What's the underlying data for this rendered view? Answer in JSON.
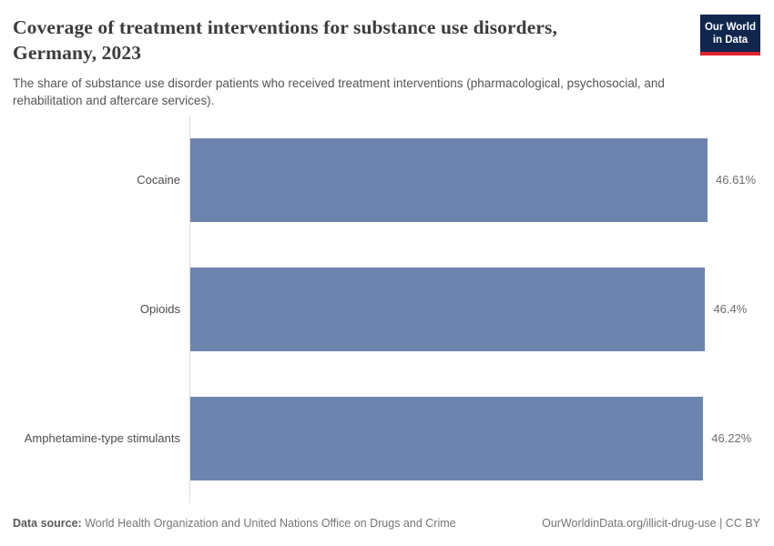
{
  "header": {
    "title": "Coverage of treatment interventions for substance use disorders, Germany, 2023",
    "title_line1": "Coverage of treatment interventions for substance use disorders,",
    "title_line2": "Germany, 2023",
    "subtitle": "The share of substance use disorder patients who received treatment interventions (pharmacological, psychosocial, and rehabilitation and aftercare services).",
    "logo": {
      "line1": "Our World",
      "line2": "in Data"
    }
  },
  "chart_data": {
    "type": "bar",
    "orientation": "horizontal",
    "title": "Coverage of treatment interventions for substance use disorders, Germany, 2023",
    "categories": [
      "Cocaine",
      "Opioids",
      "Amphetamine-type stimulants"
    ],
    "values": [
      46.61,
      46.4,
      46.22
    ],
    "value_labels": [
      "46.61%",
      "46.4%",
      "46.22%"
    ],
    "xlabel": "",
    "ylabel": "",
    "xlim": [
      0,
      46.61
    ],
    "grid": false,
    "legend": false
  },
  "footer": {
    "datasource_label": "Data source:",
    "datasource_value": " World Health Organization and United Nations Office on Drugs and Crime",
    "credit": "OurWorldinData.org/illicit-drug-use | CC BY"
  },
  "colors": {
    "bar": "#6d84ae",
    "axis_line": "#dcdcdc",
    "logo_bg": "#10264d",
    "logo_accent": "#e0232e",
    "title_text": "#3c3c3c",
    "subtitle_text": "#555555",
    "value_label_text": "#6e6e6e"
  }
}
